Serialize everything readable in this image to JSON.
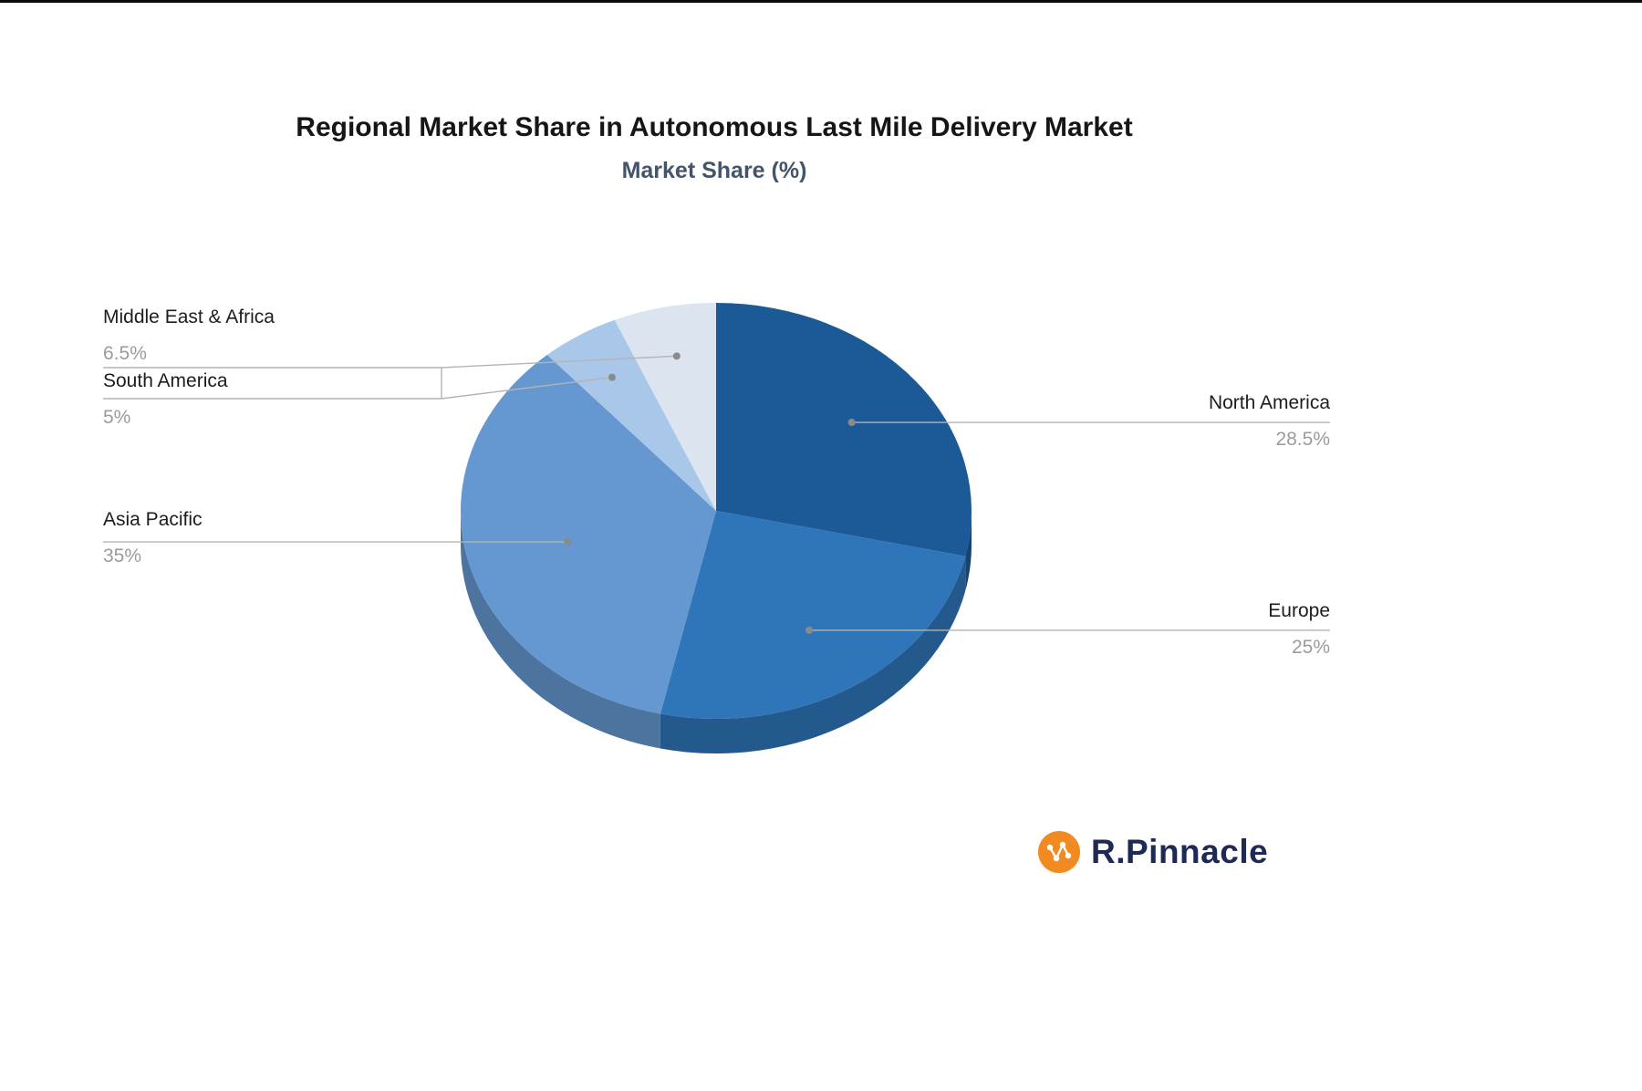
{
  "title": "Regional Market Share in Autonomous Last Mile Delivery Market",
  "subtitle": "Market Share (%)",
  "chart_data": {
    "type": "pie",
    "title": "Regional Market Share in Autonomous Last Mile Delivery Market",
    "subtitle": "Market Share (%)",
    "unit": "%",
    "labels": [
      "North America",
      "Europe",
      "Asia Pacific",
      "South America",
      "Middle East & Africa"
    ],
    "values": [
      28.5,
      25,
      35,
      5,
      6.5
    ],
    "display_values": [
      "28.5%",
      "25%",
      "35%",
      "5%",
      "6.5%"
    ],
    "colors": [
      "#1b5a97",
      "#2e75b9",
      "#6598d0",
      "#a9c7e8",
      "#dce4ef"
    ],
    "total": 100,
    "start_angle_deg": 0,
    "direction": "clockwise",
    "style": "3d",
    "legend_position": "none",
    "callout_line_color": "#b4b4b4",
    "callout_dot_color": "#8a8a8a"
  },
  "brand": {
    "name": "R.Pinnacle",
    "accent": "#f18a21",
    "text_color": "#1e2a56"
  }
}
